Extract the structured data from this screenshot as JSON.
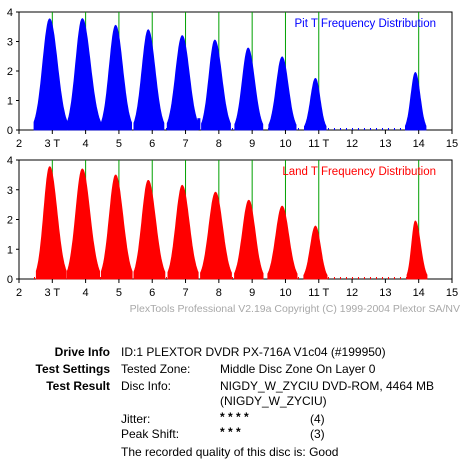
{
  "chart_data": [
    {
      "type": "area",
      "title": "Pit T Frequency Distribution",
      "title_color": "#0000ff",
      "fill_color": "#0000ff",
      "grid_color": "#00a000",
      "xlim": [
        2,
        15
      ],
      "ylim": [
        0,
        4
      ],
      "xticks": [
        2,
        3,
        4,
        5,
        6,
        7,
        8,
        9,
        10,
        11,
        12,
        13,
        14,
        15
      ],
      "xtick_labels": [
        "2",
        "3 T",
        "4",
        "5",
        "6",
        "7",
        "8",
        "9",
        "10",
        "11 T",
        "12",
        "13",
        "14",
        "15"
      ],
      "yticks": [
        0,
        1,
        2,
        3,
        4
      ],
      "peaks": [
        {
          "t": 3,
          "center": 2.92,
          "height": 3.77,
          "from": 2.45,
          "to": 3.45
        },
        {
          "t": 4,
          "center": 3.9,
          "height": 3.78,
          "from": 3.45,
          "to": 4.45
        },
        {
          "t": 5,
          "center": 4.9,
          "height": 3.55,
          "from": 4.47,
          "to": 5.38
        },
        {
          "t": 6,
          "center": 5.88,
          "height": 3.4,
          "from": 5.45,
          "to": 6.35
        },
        {
          "t": 7,
          "center": 6.9,
          "height": 3.2,
          "from": 6.45,
          "to": 7.38
        },
        {
          "t": 8,
          "center": 7.88,
          "height": 3.05,
          "from": 7.48,
          "to": 8.35
        },
        {
          "t": 9,
          "center": 8.88,
          "height": 2.78,
          "from": 8.48,
          "to": 9.32
        },
        {
          "t": 10,
          "center": 9.9,
          "height": 2.48,
          "from": 9.5,
          "to": 10.32
        },
        {
          "t": 11,
          "center": 10.9,
          "height": 1.75,
          "from": 10.57,
          "to": 11.22
        },
        {
          "t": 14,
          "center": 13.9,
          "height": 1.95,
          "from": 13.6,
          "to": 14.22
        }
      ],
      "spikes": [
        {
          "x": 7.4,
          "height": 0.4
        }
      ]
    },
    {
      "type": "area",
      "title": "Land T Frequency Distribution",
      "title_color": "#ff0000",
      "fill_color": "#ff0000",
      "grid_color": "#00a000",
      "xlim": [
        2,
        15
      ],
      "ylim": [
        0,
        4
      ],
      "xticks": [
        2,
        3,
        4,
        5,
        6,
        7,
        8,
        9,
        10,
        11,
        12,
        13,
        14,
        15
      ],
      "xtick_labels": [
        "2",
        "3 T",
        "4",
        "5",
        "6",
        "7",
        "8",
        "9",
        "10",
        "11 T",
        "12",
        "13",
        "14",
        "15"
      ],
      "yticks": [
        0,
        1,
        2,
        3,
        4
      ],
      "peaks": [
        {
          "t": 3,
          "center": 2.92,
          "height": 3.78,
          "from": 2.52,
          "to": 3.42
        },
        {
          "t": 4,
          "center": 3.9,
          "height": 3.7,
          "from": 3.45,
          "to": 4.42
        },
        {
          "t": 5,
          "center": 4.9,
          "height": 3.5,
          "from": 4.47,
          "to": 5.4
        },
        {
          "t": 6,
          "center": 5.88,
          "height": 3.32,
          "from": 5.45,
          "to": 6.38
        },
        {
          "t": 7,
          "center": 6.9,
          "height": 3.15,
          "from": 6.47,
          "to": 7.38
        },
        {
          "t": 8,
          "center": 7.9,
          "height": 2.92,
          "from": 7.45,
          "to": 8.38
        },
        {
          "t": 9,
          "center": 8.9,
          "height": 2.65,
          "from": 8.47,
          "to": 9.33
        },
        {
          "t": 10,
          "center": 9.9,
          "height": 2.45,
          "from": 9.47,
          "to": 10.35
        },
        {
          "t": 11,
          "center": 10.9,
          "height": 1.78,
          "from": 10.55,
          "to": 11.25
        },
        {
          "t": 14,
          "center": 13.9,
          "height": 1.95,
          "from": 13.65,
          "to": 14.25
        }
      ],
      "spikes": []
    }
  ],
  "copyright": "PlexTools Professional V2.19a Copyright (C) 1999-2004 Plextor SA/NV",
  "info": {
    "drive_label": "Drive Info",
    "drive_value": "ID:1 PLEXTOR DVDR PX-716A V1c04 (#199950)",
    "settings_label": "Test Settings",
    "tested_zone_label": "Tested Zone:",
    "tested_zone_value": "Middle Disc Zone On Layer 0",
    "result_label": "Test Result",
    "disc_info_label": "Disc Info:",
    "disc_info_value": "NIGDY_W_ZYCIU DVD-ROM, 4464 MB",
    "disc_info_value2": "(NIGDY_W_ZYCIU)",
    "jitter_label": "Jitter:",
    "jitter_stars": "* * * *",
    "jitter_score": "(4)",
    "peak_shift_label": "Peak Shift:",
    "peak_shift_stars": "* * *",
    "peak_shift_score": "(3)",
    "quality_text": "The recorded quality of this disc is: Good"
  }
}
